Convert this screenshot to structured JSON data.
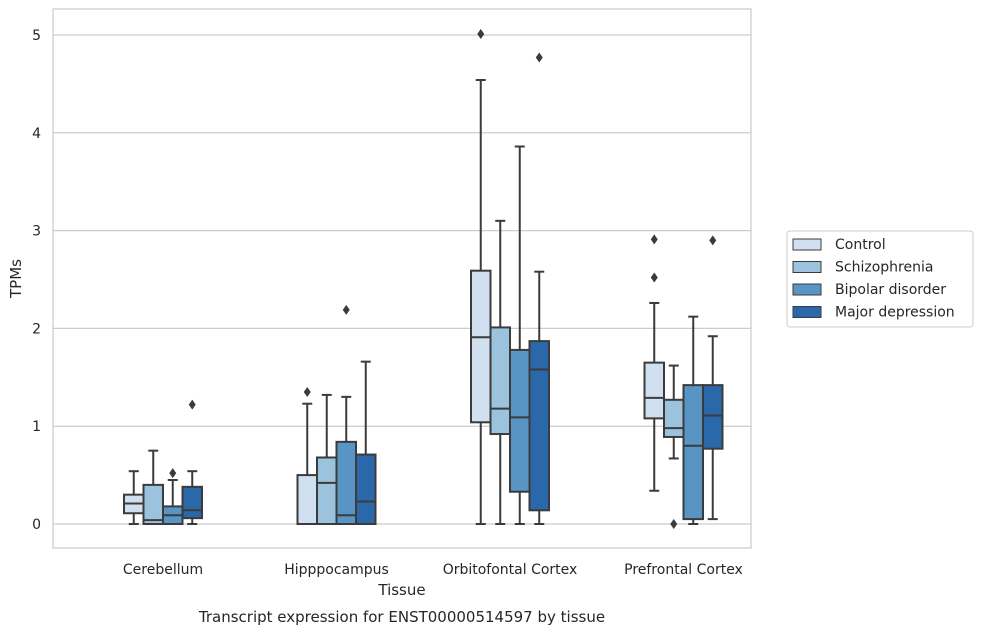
{
  "chart_data": {
    "type": "boxplot",
    "title": "",
    "caption": "Transcript expression for ENST00000514597 by tissue",
    "xlabel": "Tissue",
    "ylabel": "TPMs",
    "ylim": [
      -0.23,
      5.27
    ],
    "yticks": [
      0,
      1,
      2,
      3,
      4,
      5
    ],
    "grid": "horizontal",
    "legend_position": "right",
    "categories": [
      "Cerebellum",
      "Hipppocampus",
      "Orbitofontal Cortex",
      "Prefrontal Cortex"
    ],
    "series": [
      {
        "name": "Control",
        "color": "#d0e0f0",
        "boxes": [
          {
            "whislo": 0.0,
            "q1": 0.11,
            "med": 0.21,
            "q3": 0.3,
            "whishi": 0.54,
            "fliers": []
          },
          {
            "whislo": 0.0,
            "q1": 0.0,
            "med": 0.0,
            "q3": 0.5,
            "whishi": 1.23,
            "fliers": [
              1.35
            ]
          },
          {
            "whislo": 0.0,
            "q1": 1.04,
            "med": 1.91,
            "q3": 2.59,
            "whishi": 4.54,
            "fliers": [
              5.01
            ]
          },
          {
            "whislo": 0.34,
            "q1": 1.08,
            "med": 1.29,
            "q3": 1.65,
            "whishi": 2.26,
            "fliers": [
              2.52,
              2.91
            ]
          }
        ]
      },
      {
        "name": "Schizophrenia",
        "color": "#9bc3de",
        "boxes": [
          {
            "whislo": 0.0,
            "q1": 0.0,
            "med": 0.04,
            "q3": 0.4,
            "whishi": 0.75,
            "fliers": []
          },
          {
            "whislo": 0.0,
            "q1": 0.0,
            "med": 0.42,
            "q3": 0.68,
            "whishi": 1.32,
            "fliers": []
          },
          {
            "whislo": 0.0,
            "q1": 0.92,
            "med": 1.18,
            "q3": 2.01,
            "whishi": 3.1,
            "fliers": []
          },
          {
            "whislo": 0.67,
            "q1": 0.89,
            "med": 0.98,
            "q3": 1.27,
            "whishi": 1.62,
            "fliers": [
              0.0
            ]
          }
        ]
      },
      {
        "name": "Bipolar disorder",
        "color": "#5895c5",
        "boxes": [
          {
            "whislo": 0.0,
            "q1": 0.0,
            "med": 0.09,
            "q3": 0.18,
            "whishi": 0.45,
            "fliers": [
              0.52
            ]
          },
          {
            "whislo": 0.0,
            "q1": 0.0,
            "med": 0.09,
            "q3": 0.84,
            "whishi": 1.3,
            "fliers": [
              2.19
            ]
          },
          {
            "whislo": 0.0,
            "q1": 0.33,
            "med": 1.09,
            "q3": 1.78,
            "whishi": 3.86,
            "fliers": []
          },
          {
            "whislo": 0.0,
            "q1": 0.05,
            "med": 0.8,
            "q3": 1.42,
            "whishi": 2.12,
            "fliers": []
          }
        ]
      },
      {
        "name": "Major depression",
        "color": "#2a68a9",
        "boxes": [
          {
            "whislo": 0.0,
            "q1": 0.06,
            "med": 0.14,
            "q3": 0.38,
            "whishi": 0.54,
            "fliers": [
              1.22
            ]
          },
          {
            "whislo": 0.0,
            "q1": 0.0,
            "med": 0.23,
            "q3": 0.71,
            "whishi": 1.66,
            "fliers": []
          },
          {
            "whislo": 0.0,
            "q1": 0.14,
            "med": 1.58,
            "q3": 1.87,
            "whishi": 2.58,
            "fliers": [
              4.77
            ]
          },
          {
            "whislo": 0.05,
            "q1": 0.77,
            "med": 1.11,
            "q3": 1.42,
            "whishi": 1.92,
            "fliers": [
              2.9
            ]
          }
        ]
      }
    ]
  }
}
